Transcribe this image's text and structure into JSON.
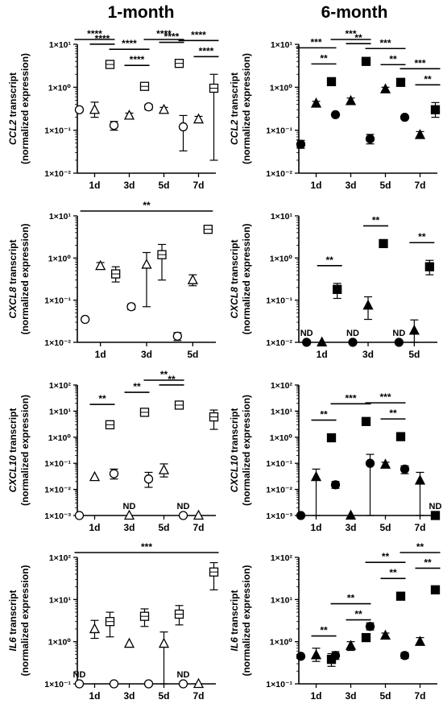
{
  "columns": [
    "1-month",
    "6-month"
  ],
  "chart_data": [
    {
      "id": "ccl2_1m",
      "type": "scatter",
      "group": "1-month",
      "marker": "open",
      "ylabel_gene": "CCL2",
      "ylabel_rest": " transcript",
      "ylabel2": "(normalized expression)",
      "ymin_exp": -2,
      "ymax_exp": 1,
      "log_scale": true,
      "yticks": [
        "1×10⁻²",
        "1×10⁻¹",
        "1×10⁰",
        "1×10¹"
      ],
      "xticks": [
        "1d",
        "3d",
        "5d",
        "7d"
      ],
      "series_shapes": [
        "circle",
        "triangle",
        "square"
      ],
      "points": [
        {
          "g": 0,
          "s": 0,
          "y": 0.3
        },
        {
          "g": 0,
          "s": 1,
          "y": 0.3,
          "lo": 0.2,
          "hi": 0.45
        },
        {
          "g": 0,
          "s": 2,
          "y": 3.4,
          "lo": 2.9,
          "hi": 3.9
        },
        {
          "g": 1,
          "s": 0,
          "y": 0.13,
          "lo": 0.1,
          "hi": 0.16
        },
        {
          "g": 1,
          "s": 1,
          "y": 0.22,
          "lo": 0.19,
          "hi": 0.25
        },
        {
          "g": 1,
          "s": 2,
          "y": 1.05,
          "lo": 0.88,
          "hi": 1.25
        },
        {
          "g": 2,
          "s": 0,
          "y": 0.35,
          "lo": 0.3,
          "hi": 0.4
        },
        {
          "g": 2,
          "s": 1,
          "y": 0.3,
          "lo": 0.26,
          "hi": 0.34
        },
        {
          "g": 2,
          "s": 2,
          "y": 3.6,
          "lo": 3.0,
          "hi": 4.3
        },
        {
          "g": 3,
          "s": 0,
          "y": 0.12,
          "lo": 0.033,
          "hi": 0.22
        },
        {
          "g": 3,
          "s": 1,
          "y": 0.18,
          "lo": 0.15,
          "hi": 0.21
        },
        {
          "g": 3,
          "s": 2,
          "y": 0.95,
          "lo": 0.02,
          "hi": 2.0
        }
      ],
      "sig": [
        {
          "g": 0,
          "a": 0,
          "b": 2,
          "level": 1,
          "label": "****"
        },
        {
          "g": 0,
          "a": 1,
          "b": 2,
          "level": 0,
          "label": "****"
        },
        {
          "g": 1,
          "a": 0,
          "b": 2,
          "level": 1,
          "label": "****"
        },
        {
          "g": 1,
          "a": 1,
          "b": 2,
          "level": 0,
          "label": "****"
        },
        {
          "g": 2,
          "a": 0,
          "b": 2,
          "level": 1,
          "label": "****"
        },
        {
          "g": 2,
          "a": 1,
          "b": 2,
          "level": 0,
          "label": "****"
        },
        {
          "g": 3,
          "a": 0,
          "b": 2,
          "level": 1,
          "label": "****"
        },
        {
          "g": 3,
          "a": 1,
          "b": 2,
          "level": 0,
          "label": "****"
        }
      ],
      "nd": []
    },
    {
      "id": "ccl2_6m",
      "type": "scatter",
      "group": "6-month",
      "marker": "filled",
      "ylabel_gene": "CCL2",
      "ylabel_rest": " transcript",
      "ylabel2": "(normalized expression)",
      "ymin_exp": -2,
      "ymax_exp": 1,
      "log_scale": true,
      "yticks": [
        "1×10⁻²",
        "1×10⁻¹",
        "1×10⁰",
        "1×10¹"
      ],
      "xticks": [
        "1d",
        "3d",
        "5d",
        "7d"
      ],
      "series_shapes": [
        "circle",
        "triangle",
        "square"
      ],
      "points": [
        {
          "g": 0,
          "s": 0,
          "y": 0.047,
          "lo": 0.038,
          "hi": 0.058
        },
        {
          "g": 0,
          "s": 1,
          "y": 0.42,
          "lo": 0.38,
          "hi": 0.47
        },
        {
          "g": 0,
          "s": 2,
          "y": 1.35
        },
        {
          "g": 1,
          "s": 0,
          "y": 0.23
        },
        {
          "g": 1,
          "s": 1,
          "y": 0.48,
          "lo": 0.4,
          "hi": 0.56
        },
        {
          "g": 1,
          "s": 2,
          "y": 4.0
        },
        {
          "g": 2,
          "s": 0,
          "y": 0.063,
          "lo": 0.048,
          "hi": 0.08
        },
        {
          "g": 2,
          "s": 1,
          "y": 0.9,
          "lo": 0.8,
          "hi": 1.0
        },
        {
          "g": 2,
          "s": 2,
          "y": 1.3
        },
        {
          "g": 3,
          "s": 0,
          "y": 0.2
        },
        {
          "g": 3,
          "s": 1,
          "y": 0.078,
          "lo": 0.065,
          "hi": 0.093
        },
        {
          "g": 3,
          "s": 2,
          "y": 0.3,
          "lo": 0.2,
          "hi": 0.44
        }
      ],
      "sig": [
        {
          "g": 0,
          "a": 0,
          "b": 2,
          "level": 1,
          "label": "***"
        },
        {
          "g": 0,
          "a": 1,
          "b": 2,
          "level": 0,
          "label": "**"
        },
        {
          "g": 1,
          "a": 0,
          "b": 2,
          "level": 1,
          "label": "***"
        },
        {
          "g": 1,
          "a": 1,
          "b": 2,
          "level": 0,
          "label": "**"
        },
        {
          "g": 2,
          "a": 0,
          "b": 2,
          "level": 1,
          "label": "***"
        },
        {
          "g": 2,
          "a": 1,
          "b": 2,
          "level": 0,
          "label": "**"
        },
        {
          "g": 3,
          "a": 0,
          "b": 2,
          "level": 1,
          "label": "***"
        },
        {
          "g": 3,
          "a": 1,
          "b": 2,
          "level": 0,
          "label": "**"
        }
      ],
      "nd": []
    },
    {
      "id": "cxcl8_1m",
      "type": "scatter",
      "group": "1-month",
      "marker": "open",
      "ylabel_gene": "CXCL8",
      "ylabel_rest": " transcript",
      "ylabel2": "(normalized expression)",
      "ymin_exp": -2,
      "ymax_exp": 1,
      "log_scale": true,
      "yticks": [
        "1×10⁻²",
        "1×10⁻¹",
        "1×10⁰",
        "1×10¹"
      ],
      "xticks": [
        "1d",
        "3d",
        "5d"
      ],
      "series_shapes": [
        "circle",
        "triangle",
        "square"
      ],
      "points": [
        {
          "g": 0,
          "s": 0,
          "y": 0.035
        },
        {
          "g": 0,
          "s": 1,
          "y": 0.65,
          "lo": 0.55,
          "hi": 0.78
        },
        {
          "g": 0,
          "s": 2,
          "y": 0.42,
          "lo": 0.27,
          "hi": 0.62
        },
        {
          "g": 1,
          "s": 0,
          "y": 0.07,
          "lo": 0.06,
          "hi": 0.08
        },
        {
          "g": 1,
          "s": 1,
          "y": 0.7,
          "lo": 0.07,
          "hi": 1.35
        },
        {
          "g": 1,
          "s": 2,
          "y": 1.2,
          "lo": 0.3,
          "hi": 2.1
        },
        {
          "g": 2,
          "s": 0,
          "y": 0.014,
          "lo": 0.011,
          "hi": 0.017
        },
        {
          "g": 2,
          "s": 1,
          "y": 0.3,
          "lo": 0.22,
          "hi": 0.4
        },
        {
          "g": 2,
          "s": 2,
          "y": 4.8,
          "lo": 4.0,
          "hi": 5.6
        }
      ],
      "sig": [
        {
          "from": [
            0,
            0
          ],
          "to": [
            2,
            2
          ],
          "level": 2,
          "label": "**"
        }
      ],
      "nd": []
    },
    {
      "id": "cxcl8_6m",
      "type": "scatter",
      "group": "6-month",
      "marker": "filled",
      "ylabel_gene": "CXCL8",
      "ylabel_rest": " transcript",
      "ylabel2": "(normalized expression)",
      "ymin_exp": -2,
      "ymax_exp": 1,
      "log_scale": true,
      "yticks": [
        "1×10⁻²",
        "1×10⁻¹",
        "1×10⁰",
        "1×10¹"
      ],
      "xticks": [
        "1d",
        "3d",
        "5d"
      ],
      "series_shapes": [
        "circle",
        "triangle",
        "square"
      ],
      "points": [
        {
          "g": 0,
          "s": 0,
          "y": 0.01
        },
        {
          "g": 0,
          "s": 1,
          "y": 0.01
        },
        {
          "g": 0,
          "s": 2,
          "y": 0.18,
          "lo": 0.11,
          "hi": 0.25
        },
        {
          "g": 1,
          "s": 0,
          "y": 0.01
        },
        {
          "g": 1,
          "s": 1,
          "y": 0.075,
          "lo": 0.035,
          "hi": 0.12
        },
        {
          "g": 1,
          "s": 2,
          "y": 2.2
        },
        {
          "g": 2,
          "s": 0,
          "y": 0.01
        },
        {
          "g": 2,
          "s": 1,
          "y": 0.019,
          "lo": 0.01,
          "hi": 0.034
        },
        {
          "g": 2,
          "s": 2,
          "y": 0.62,
          "lo": 0.4,
          "hi": 0.88
        }
      ],
      "sig": [
        {
          "g": 0,
          "a": 1,
          "b": 2,
          "level": 0,
          "label": "**"
        },
        {
          "g": 1,
          "a": 1,
          "b": 2,
          "level": 0,
          "label": "**"
        },
        {
          "g": 2,
          "a": 1,
          "b": 2,
          "level": 0,
          "label": "**"
        }
      ],
      "nd": [
        {
          "g": 0,
          "s": 0,
          "label": "ND"
        },
        {
          "g": 1,
          "s": 0,
          "label": "ND"
        },
        {
          "g": 2,
          "s": 0,
          "label": "ND"
        }
      ]
    },
    {
      "id": "cxcl10_1m",
      "type": "scatter",
      "group": "1-month",
      "marker": "open",
      "ylabel_gene": "CXCL10",
      "ylabel_rest": " transcript",
      "ylabel2": "(normalized expression)",
      "ymin_exp": -3,
      "ymax_exp": 2,
      "log_scale": true,
      "yticks": [
        "1×10⁻³",
        "1×10⁻²",
        "1×10⁻¹",
        "1×10⁰",
        "1×10¹",
        "1×10²"
      ],
      "xticks": [
        "1d",
        "3d",
        "5d",
        "7d"
      ],
      "series_shapes": [
        "circle",
        "triangle",
        "square"
      ],
      "points": [
        {
          "g": 0,
          "s": 0,
          "y": 0.001
        },
        {
          "g": 0,
          "s": 1,
          "y": 0.03
        },
        {
          "g": 0,
          "s": 2,
          "y": 3.0,
          "lo": 2.4,
          "hi": 3.8
        },
        {
          "g": 1,
          "s": 0,
          "y": 0.04,
          "lo": 0.025,
          "hi": 0.06
        },
        {
          "g": 1,
          "s": 1,
          "y": 0.001
        },
        {
          "g": 1,
          "s": 2,
          "y": 9.0,
          "lo": 7.5,
          "hi": 11
        },
        {
          "g": 2,
          "s": 0,
          "y": 0.025,
          "lo": 0.012,
          "hi": 0.045
        },
        {
          "g": 2,
          "s": 1,
          "y": 0.055,
          "lo": 0.03,
          "hi": 0.095
        },
        {
          "g": 2,
          "s": 2,
          "y": 17,
          "lo": 14,
          "hi": 21
        },
        {
          "g": 3,
          "s": 0,
          "y": 0.001
        },
        {
          "g": 3,
          "s": 1,
          "y": 0.001
        },
        {
          "g": 3,
          "s": 2,
          "y": 6.0,
          "lo": 2.0,
          "hi": 11
        }
      ],
      "sig": [
        {
          "g": 0,
          "a": 1,
          "b": 2,
          "level": 0,
          "label": "**"
        },
        {
          "g": 1,
          "a": 1,
          "b": 2,
          "level": 0,
          "label": "**"
        },
        {
          "g": 2,
          "a": 0,
          "b": 2,
          "level": 1,
          "label": "**"
        },
        {
          "g": 2,
          "a": 1,
          "b": 2,
          "level": 0,
          "label": "**"
        }
      ],
      "nd": [
        {
          "g": 1,
          "s": 1,
          "label": "ND"
        },
        {
          "g": 3,
          "s": 0,
          "label": "ND"
        }
      ]
    },
    {
      "id": "cxcl10_6m",
      "type": "scatter",
      "group": "6-month",
      "marker": "filled",
      "ylabel_gene": "CXCL10",
      "ylabel_rest": " transcript",
      "ylabel2": "(normalized expression)",
      "ymin_exp": -3,
      "ymax_exp": 2,
      "log_scale": true,
      "yticks": [
        "1×10⁻³",
        "1×10⁻²",
        "1×10⁻¹",
        "1×10⁰",
        "1×10¹",
        "1×10²"
      ],
      "xticks": [
        "1d",
        "3d",
        "5d",
        "7d"
      ],
      "series_shapes": [
        "circle",
        "triangle",
        "square"
      ],
      "points": [
        {
          "g": 0,
          "s": 0,
          "y": 0.001
        },
        {
          "g": 0,
          "s": 1,
          "y": 0.03,
          "lo": 0.001,
          "hi": 0.06
        },
        {
          "g": 0,
          "s": 2,
          "y": 0.95
        },
        {
          "g": 1,
          "s": 0,
          "y": 0.015,
          "lo": 0.011,
          "hi": 0.02
        },
        {
          "g": 1,
          "s": 1,
          "y": 0.001
        },
        {
          "g": 1,
          "s": 2,
          "y": 4.0
        },
        {
          "g": 2,
          "s": 0,
          "y": 0.1,
          "lo": 0.001,
          "hi": 0.22
        },
        {
          "g": 2,
          "s": 1,
          "y": 0.09,
          "lo": 0.075,
          "hi": 0.11
        },
        {
          "g": 2,
          "s": 2,
          "y": 1.05
        },
        {
          "g": 3,
          "s": 0,
          "y": 0.06,
          "lo": 0.04,
          "hi": 0.08
        },
        {
          "g": 3,
          "s": 1,
          "y": 0.022,
          "lo": 0.001,
          "hi": 0.045
        },
        {
          "g": 3,
          "s": 2,
          "y": 0.001
        }
      ],
      "sig": [
        {
          "g": 0,
          "a": 1,
          "b": 2,
          "level": 0,
          "label": "**"
        },
        {
          "g": 1,
          "a": 0,
          "b": 2,
          "level": 0,
          "label": "***"
        },
        {
          "g": 2,
          "a": 0,
          "b": 2,
          "level": 1,
          "label": "***"
        },
        {
          "g": 2,
          "a": 1,
          "b": 2,
          "level": 0,
          "label": "**"
        }
      ],
      "nd": [
        {
          "g": 3,
          "s": 2,
          "label": "ND"
        }
      ]
    },
    {
      "id": "il6_1m",
      "type": "scatter",
      "group": "1-month",
      "marker": "open",
      "ylabel_gene": "IL6",
      "ylabel_rest": " transcript",
      "ylabel2": "(normalized expression)",
      "ymin_exp": -1,
      "ymax_exp": 2,
      "log_scale": true,
      "yticks": [
        "1×10⁻¹",
        "1×10⁰",
        "1×10¹",
        "1×10²"
      ],
      "xticks": [
        "1d",
        "3d",
        "5d",
        "7d"
      ],
      "series_shapes": [
        "circle",
        "triangle",
        "square"
      ],
      "points": [
        {
          "g": 0,
          "s": 0,
          "y": 0.1
        },
        {
          "g": 0,
          "s": 1,
          "y": 2.0,
          "lo": 1.2,
          "hi": 3.2
        },
        {
          "g": 0,
          "s": 2,
          "y": 3.0,
          "lo": 1.3,
          "hi": 5.0
        },
        {
          "g": 1,
          "s": 0,
          "y": 0.1
        },
        {
          "g": 1,
          "s": 1,
          "y": 0.9
        },
        {
          "g": 1,
          "s": 2,
          "y": 4.0,
          "lo": 2.3,
          "hi": 6.0
        },
        {
          "g": 2,
          "s": 0,
          "y": 0.1
        },
        {
          "g": 2,
          "s": 1,
          "y": 0.9,
          "lo": 0.1,
          "hi": 1.7
        },
        {
          "g": 2,
          "s": 2,
          "y": 4.5,
          "lo": 2.5,
          "hi": 7.2
        },
        {
          "g": 3,
          "s": 0,
          "y": 0.1
        },
        {
          "g": 3,
          "s": 1,
          "y": 0.1
        },
        {
          "g": 3,
          "s": 2,
          "y": 45,
          "lo": 17,
          "hi": 75
        }
      ],
      "sig": [
        {
          "from": [
            0,
            0
          ],
          "to": [
            3,
            2
          ],
          "level": 2,
          "label": "***"
        }
      ],
      "nd": [
        {
          "g": 0,
          "s": 0,
          "label": "ND"
        },
        {
          "g": 3,
          "s": 0,
          "label": "ND"
        }
      ]
    },
    {
      "id": "il6_6m",
      "type": "scatter",
      "group": "6-month",
      "marker": "filled",
      "ylabel_gene": "IL6",
      "ylabel_rest": " transcript",
      "ylabel2": "(normalized expression)",
      "ymin_exp": -1,
      "ymax_exp": 2,
      "log_scale": true,
      "yticks": [
        "1×10⁻¹",
        "1×10⁰",
        "1×10¹",
        "1×10²"
      ],
      "xticks": [
        "1d",
        "3d",
        "5d",
        "7d"
      ],
      "series_shapes": [
        "circle",
        "triangle",
        "square"
      ],
      "points": [
        {
          "g": 0,
          "s": 0,
          "y": 0.45
        },
        {
          "g": 0,
          "s": 1,
          "y": 0.48,
          "lo": 0.34,
          "hi": 0.7
        },
        {
          "g": 0,
          "s": 2,
          "y": 0.38,
          "lo": 0.26,
          "hi": 0.52
        },
        {
          "g": 1,
          "s": 0,
          "y": 0.47,
          "lo": 0.38,
          "hi": 0.58
        },
        {
          "g": 1,
          "s": 1,
          "y": 0.8,
          "lo": 0.62,
          "hi": 1.0
        },
        {
          "g": 1,
          "s": 2,
          "y": 1.25
        },
        {
          "g": 2,
          "s": 0,
          "y": 2.3,
          "lo": 1.9,
          "hi": 2.8
        },
        {
          "g": 2,
          "s": 1,
          "y": 1.4,
          "lo": 1.25,
          "hi": 1.6
        },
        {
          "g": 2,
          "s": 2,
          "y": 12
        },
        {
          "g": 3,
          "s": 0,
          "y": 0.47,
          "lo": 0.4,
          "hi": 0.55
        },
        {
          "g": 3,
          "s": 1,
          "y": 1.0,
          "lo": 0.85,
          "hi": 1.25
        },
        {
          "g": 3,
          "s": 2,
          "y": 17,
          "lo": 14,
          "hi": 21
        }
      ],
      "sig": [
        {
          "g": 0,
          "a": 1,
          "b": 2,
          "level": 0,
          "label": "**"
        },
        {
          "g": 1,
          "a": 0,
          "b": 2,
          "level": 1,
          "label": "**"
        },
        {
          "g": 1,
          "a": 1,
          "b": 2,
          "level": 0,
          "label": "**"
        },
        {
          "g": 2,
          "a": 0,
          "b": 2,
          "level": 1,
          "label": "**"
        },
        {
          "g": 2,
          "a": 1,
          "b": 2,
          "level": 0,
          "label": "**"
        },
        {
          "g": 3,
          "a": 0,
          "b": 2,
          "level": 1,
          "label": "**"
        },
        {
          "g": 3,
          "a": 1,
          "b": 2,
          "level": 0,
          "label": "**"
        }
      ],
      "nd": []
    }
  ]
}
